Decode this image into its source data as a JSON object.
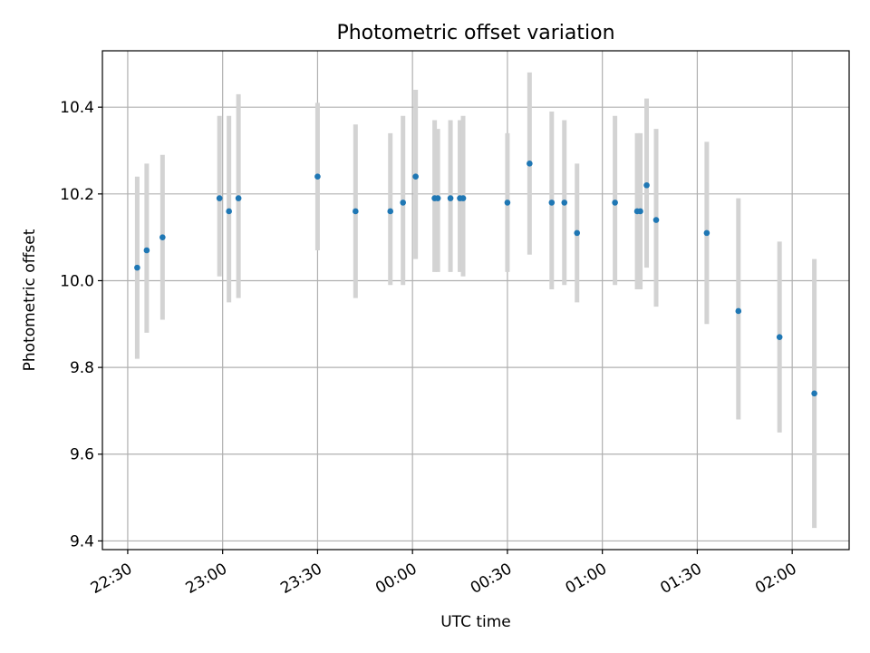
{
  "chart_data": {
    "type": "scatter",
    "title": "Photometric offset variation",
    "xlabel": "UTC time",
    "ylabel": "Photometric offset",
    "x_axis": {
      "start": "22:22",
      "end": "02:18",
      "ticks": [
        "22:30",
        "23:00",
        "23:30",
        "00:00",
        "00:30",
        "01:00",
        "01:30",
        "02:00"
      ]
    },
    "y_axis": {
      "min": 9.38,
      "max": 10.53,
      "ticks": [
        9.4,
        9.6,
        9.8,
        10.0,
        10.2,
        10.4
      ],
      "tick_labels": [
        "9.4",
        "9.6",
        "9.8",
        "10.0",
        "10.2",
        "10.4"
      ]
    },
    "grid": true,
    "marker_color": "#1f77b4",
    "errorbar_color": "#d3d3d3",
    "points": [
      {
        "t": "22:33",
        "y": 10.03,
        "lo": 9.82,
        "hi": 10.24
      },
      {
        "t": "22:36",
        "y": 10.07,
        "lo": 9.88,
        "hi": 10.27
      },
      {
        "t": "22:41",
        "y": 10.1,
        "lo": 9.91,
        "hi": 10.29
      },
      {
        "t": "22:59",
        "y": 10.19,
        "lo": 10.01,
        "hi": 10.38
      },
      {
        "t": "23:02",
        "y": 10.16,
        "lo": 9.95,
        "hi": 10.38
      },
      {
        "t": "23:05",
        "y": 10.19,
        "lo": 9.96,
        "hi": 10.43
      },
      {
        "t": "23:30",
        "y": 10.24,
        "lo": 10.07,
        "hi": 10.41
      },
      {
        "t": "23:42",
        "y": 10.16,
        "lo": 9.96,
        "hi": 10.36
      },
      {
        "t": "23:53",
        "y": 10.16,
        "lo": 9.99,
        "hi": 10.34
      },
      {
        "t": "23:57",
        "y": 10.18,
        "lo": 9.99,
        "hi": 10.38
      },
      {
        "t": "00:01",
        "y": 10.24,
        "lo": 10.05,
        "hi": 10.44
      },
      {
        "t": "00:07",
        "y": 10.19,
        "lo": 10.02,
        "hi": 10.37
      },
      {
        "t": "00:08",
        "y": 10.19,
        "lo": 10.02,
        "hi": 10.35
      },
      {
        "t": "00:12",
        "y": 10.19,
        "lo": 10.02,
        "hi": 10.37
      },
      {
        "t": "00:15",
        "y": 10.19,
        "lo": 10.02,
        "hi": 10.37
      },
      {
        "t": "00:16",
        "y": 10.19,
        "lo": 10.01,
        "hi": 10.38
      },
      {
        "t": "00:30",
        "y": 10.18,
        "lo": 10.02,
        "hi": 10.34
      },
      {
        "t": "00:37",
        "y": 10.27,
        "lo": 10.06,
        "hi": 10.48
      },
      {
        "t": "00:44",
        "y": 10.18,
        "lo": 9.98,
        "hi": 10.39
      },
      {
        "t": "00:48",
        "y": 10.18,
        "lo": 9.99,
        "hi": 10.37
      },
      {
        "t": "00:52",
        "y": 10.11,
        "lo": 9.95,
        "hi": 10.27
      },
      {
        "t": "01:04",
        "y": 10.18,
        "lo": 9.99,
        "hi": 10.38
      },
      {
        "t": "01:11",
        "y": 10.16,
        "lo": 9.98,
        "hi": 10.34
      },
      {
        "t": "01:12",
        "y": 10.16,
        "lo": 9.98,
        "hi": 10.34
      },
      {
        "t": "01:14",
        "y": 10.22,
        "lo": 10.03,
        "hi": 10.42
      },
      {
        "t": "01:17",
        "y": 10.14,
        "lo": 9.94,
        "hi": 10.35
      },
      {
        "t": "01:33",
        "y": 10.11,
        "lo": 9.9,
        "hi": 10.32
      },
      {
        "t": "01:43",
        "y": 9.93,
        "lo": 9.68,
        "hi": 10.19
      },
      {
        "t": "01:56",
        "y": 9.87,
        "lo": 9.65,
        "hi": 10.09
      },
      {
        "t": "02:07",
        "y": 9.74,
        "lo": 9.43,
        "hi": 10.05
      }
    ]
  }
}
